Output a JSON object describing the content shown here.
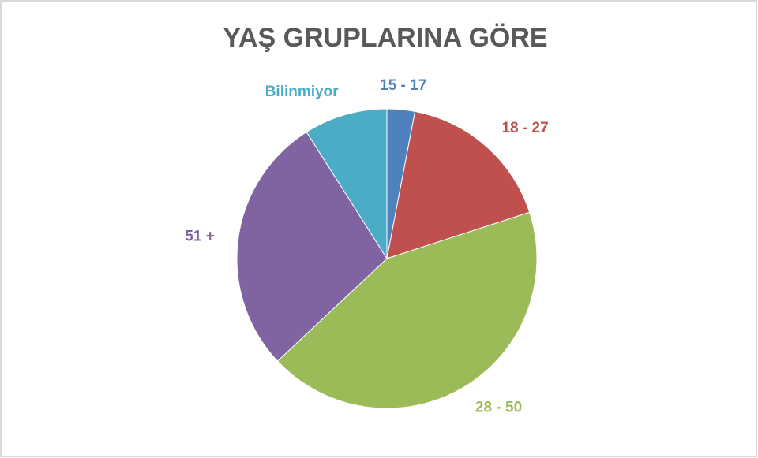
{
  "chart_data": {
    "type": "pie",
    "title": "YAŞ GRUPLARINA GÖRE",
    "categories": [
      "15 - 17",
      "18 - 27",
      "28 - 50",
      "51 +",
      "Bilinmiyor"
    ],
    "values": [
      3,
      17,
      43,
      28,
      9
    ],
    "colors": [
      "#4f81bd",
      "#c0504d",
      "#9bbb59",
      "#8064a2",
      "#4bacc6"
    ]
  }
}
